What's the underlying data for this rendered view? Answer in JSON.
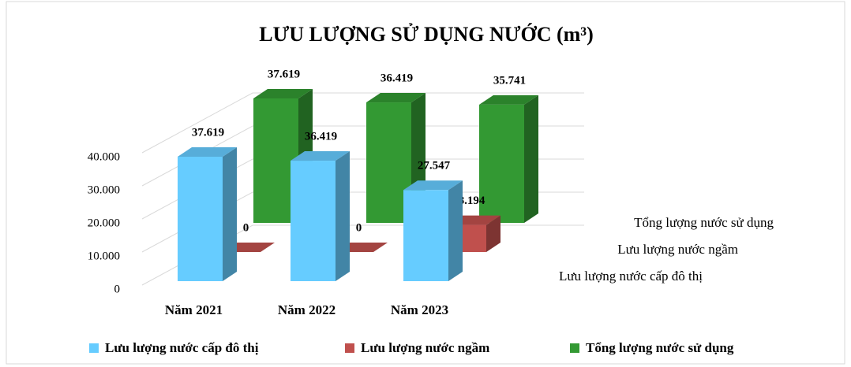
{
  "chart_data": {
    "type": "bar3d",
    "title": "LƯU LƯỢNG SỬ DỤNG NƯỚC (m³)",
    "categories": [
      "Năm 2021",
      "Năm 2022",
      "Năm 2023"
    ],
    "series": [
      {
        "name": "Lưu lượng nước cấp đô thị",
        "color": "#66ccff",
        "values": [
          37619,
          36419,
          27547
        ],
        "value_labels": [
          "37.619",
          "36.419",
          "27.547"
        ]
      },
      {
        "name": "Lưu lượng nước ngầm",
        "color": "#c0504d",
        "values": [
          0,
          0,
          8194
        ],
        "value_labels": [
          "0",
          "0",
          "8.194"
        ]
      },
      {
        "name": "Tổng lượng nước sử dụng",
        "color": "#339933",
        "values": [
          37619,
          36419,
          35741
        ],
        "value_labels": [
          "37.619",
          "36.419",
          "35.741"
        ]
      }
    ],
    "ylim": [
      0,
      40000
    ],
    "yticks": [
      0,
      {
        "value": 10000,
        "label": "10.000"
      },
      {
        "value": 20000,
        "label": "20.000"
      },
      {
        "value": 30000,
        "label": "30.000"
      },
      {
        "value": 40000,
        "label": "40.000"
      }
    ],
    "grid": true,
    "legend": "bottom"
  }
}
